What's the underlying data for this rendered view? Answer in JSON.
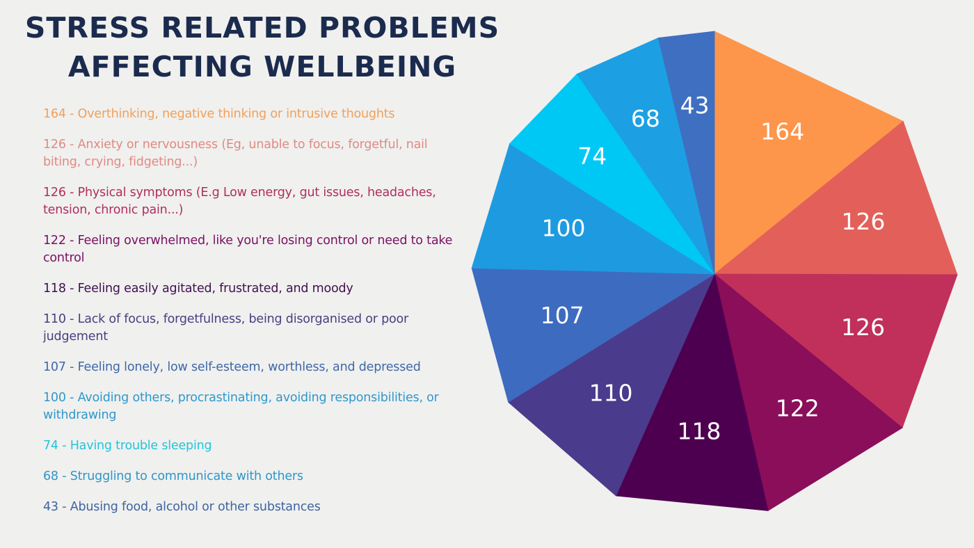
{
  "chart_data": {
    "type": "pie",
    "title": "STRESS RELATED PROBLEMS AFFECTING WELLBEING",
    "title_lines": [
      "STRESS RELATED PROBLEMS",
      "AFFECTING WELLBEING"
    ],
    "start": "top",
    "direction": "clockwise",
    "legend_placement": "left",
    "slices": [
      {
        "value": 164,
        "label": "164",
        "legend": "164 - Overthinking, negative thinking or intrusive thoughts",
        "color": "#fd964b",
        "text_color": "#f0a05a"
      },
      {
        "value": 126,
        "label": "126",
        "legend": "126 - Anxiety or nervousness (Eg, unable to focus, forgetful, nail biting, crying, fidgeting...)",
        "color": "#e3605a",
        "text_color": "#e08a82"
      },
      {
        "value": 126,
        "label": "126",
        "legend": "126 - Physical symptoms (E.g Low energy, gut issues, headaches, tension, chronic pain...)",
        "color": "#c0305a",
        "text_color": "#b02e5e"
      },
      {
        "value": 122,
        "label": "122",
        "legend": "122 - Feeling overwhelmed, like you're losing control or need to take control",
        "color": "#8a0e5a",
        "text_color": "#7a1062"
      },
      {
        "value": 118,
        "label": "118",
        "legend": "118 - Feeling easily agitated, frustrated, and moody",
        "color": "#4e0050",
        "text_color": "#40104e"
      },
      {
        "value": 110,
        "label": "110",
        "legend": "110 - Lack of focus, forgetfulness, being disorganised or poor judgement",
        "color": "#4b3b8c",
        "text_color": "#4a3e80"
      },
      {
        "value": 107,
        "label": "107",
        "legend": "107 - Feeling lonely, low self-esteem, worthless, and depressed",
        "color": "#3d6bc0",
        "text_color": "#3e68a8"
      },
      {
        "value": 100,
        "label": "100",
        "legend": "100 - Avoiding others, procrastinating, avoiding responsibilities, or withdrawing",
        "color": "#1e9be0",
        "text_color": "#2e98cc"
      },
      {
        "value": 74,
        "label": "74",
        "legend": "74 - Having trouble sleeping",
        "color": "#00c8f5",
        "text_color": "#22c4dc"
      },
      {
        "value": 68,
        "label": "68",
        "legend": "68 - Struggling to communicate with others",
        "color": "#1ca0e3",
        "text_color": "#2e96c8"
      },
      {
        "value": 43,
        "label": "43",
        "legend": "43 - Abusing food, alcohol or other substances",
        "color": "#3f6fc0",
        "text_color": "#3e64a0"
      }
    ]
  }
}
